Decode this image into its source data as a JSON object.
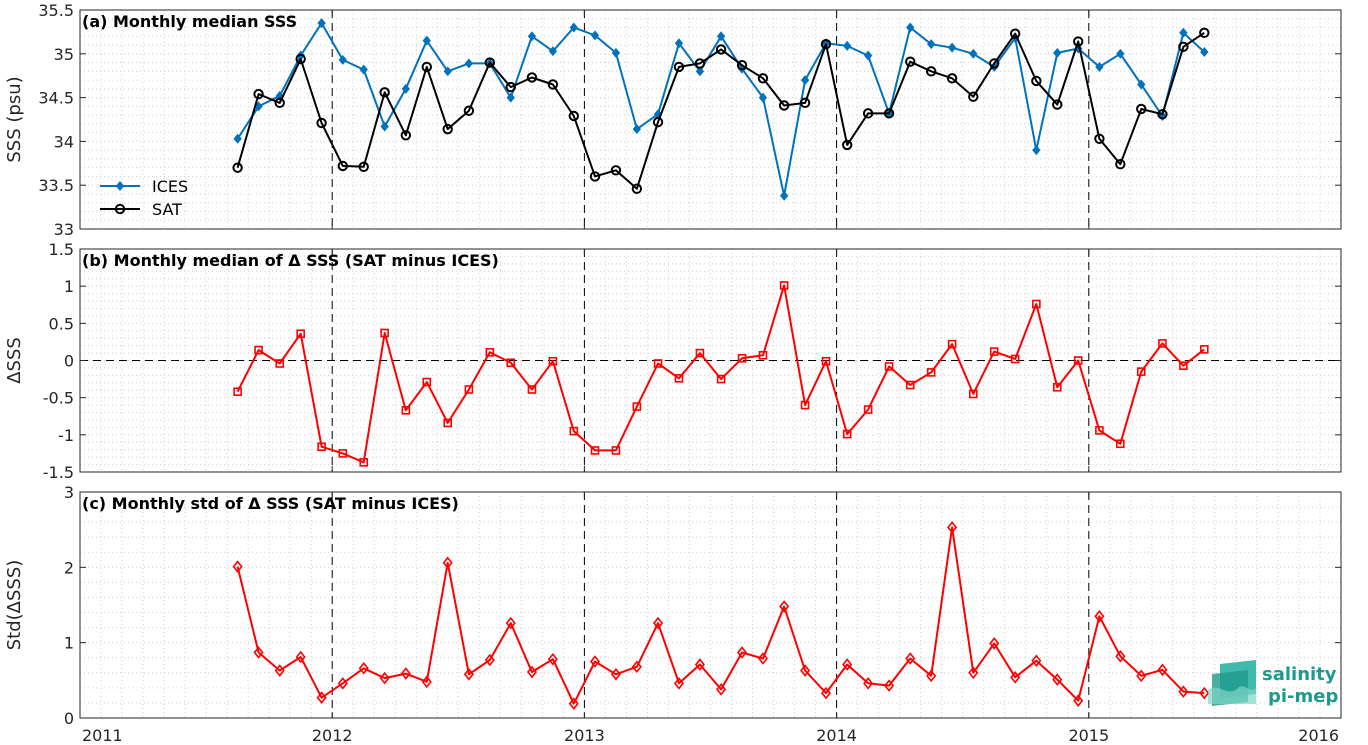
{
  "chart_data": [
    {
      "type": "line",
      "title": "(a) Monthly median SSS",
      "xlabel": "",
      "ylabel": "SSS (psu)",
      "xlim": [
        2011,
        2016
      ],
      "ylim": [
        33,
        35.5
      ],
      "yticks": [
        "33",
        "33.5",
        "34",
        "34.5",
        "35",
        "35.5"
      ],
      "xticks": [
        "2011",
        "2012",
        "2013",
        "2014",
        "2015",
        "2016"
      ],
      "grid": "minor dotted",
      "legend": "bottom-left",
      "series": [
        {
          "name": "ICES",
          "color": "#0072BD",
          "marker": "diamond",
          "x": [
            2011.625,
            2011.708,
            2011.792,
            2011.875,
            2011.958,
            2012.042,
            2012.125,
            2012.208,
            2012.292,
            2012.375,
            2012.458,
            2012.542,
            2012.625,
            2012.708,
            2012.792,
            2012.875,
            2012.958,
            2013.042,
            2013.125,
            2013.208,
            2013.292,
            2013.375,
            2013.458,
            2013.542,
            2013.625,
            2013.708,
            2013.792,
            2013.875,
            2013.958,
            2014.042,
            2014.125,
            2014.208,
            2014.292,
            2014.375,
            2014.458,
            2014.542,
            2014.625,
            2014.708,
            2014.792,
            2014.875,
            2014.958,
            2015.042,
            2015.125,
            2015.208,
            2015.292,
            2015.375,
            2015.458
          ],
          "values": [
            34.03,
            34.4,
            34.52,
            34.98,
            35.35,
            34.93,
            34.82,
            34.17,
            34.6,
            35.15,
            34.8,
            34.89,
            34.89,
            34.5,
            35.2,
            35.03,
            35.3,
            35.21,
            35.01,
            34.14,
            34.31,
            35.12,
            34.8,
            35.2,
            34.83,
            34.5,
            33.38,
            34.7,
            35.12,
            35.09,
            34.98,
            34.32,
            35.3,
            35.11,
            35.07,
            35.0,
            34.85,
            35.18,
            33.9,
            35.01,
            35.06,
            34.85,
            35.0,
            34.65,
            34.29,
            35.24,
            35.02
          ]
        },
        {
          "name": "SAT",
          "color": "#000000",
          "marker": "circle",
          "x": [
            2011.625,
            2011.708,
            2011.792,
            2011.875,
            2011.958,
            2012.042,
            2012.125,
            2012.208,
            2012.292,
            2012.375,
            2012.458,
            2012.542,
            2012.625,
            2012.708,
            2012.792,
            2012.875,
            2012.958,
            2013.042,
            2013.125,
            2013.208,
            2013.292,
            2013.375,
            2013.458,
            2013.542,
            2013.625,
            2013.708,
            2013.792,
            2013.875,
            2013.958,
            2014.042,
            2014.125,
            2014.208,
            2014.292,
            2014.375,
            2014.458,
            2014.542,
            2014.625,
            2014.708,
            2014.792,
            2014.875,
            2014.958,
            2015.042,
            2015.125,
            2015.208,
            2015.292,
            2015.375,
            2015.458
          ],
          "values": [
            33.7,
            34.54,
            34.44,
            34.94,
            34.21,
            33.72,
            33.71,
            34.56,
            34.07,
            34.85,
            34.14,
            34.35,
            34.9,
            34.62,
            34.73,
            34.65,
            34.29,
            33.6,
            33.67,
            33.46,
            34.22,
            34.85,
            34.89,
            35.05,
            34.87,
            34.72,
            34.41,
            34.44,
            35.11,
            33.96,
            34.32,
            34.32,
            34.91,
            34.8,
            34.72,
            34.51,
            34.89,
            35.23,
            34.69,
            34.42,
            35.14,
            34.03,
            33.74,
            34.37,
            34.31,
            35.08,
            35.24
          ]
        }
      ]
    },
    {
      "type": "line",
      "title": "(b) Monthly median of Δ SSS (SAT minus ICES)",
      "xlabel": "",
      "ylabel": "ΔSSS",
      "xlim": [
        2011,
        2016
      ],
      "ylim": [
        -1.5,
        1.5
      ],
      "yticks": [
        "-1.5",
        "-1",
        "-0.5",
        "0",
        "0.5",
        "1",
        "1.5"
      ],
      "grid": "minor dotted",
      "zero_line": true,
      "series": [
        {
          "color": "#FF0000",
          "marker": "square",
          "x": [
            2011.625,
            2011.708,
            2011.792,
            2011.875,
            2011.958,
            2012.042,
            2012.125,
            2012.208,
            2012.292,
            2012.375,
            2012.458,
            2012.542,
            2012.625,
            2012.708,
            2012.792,
            2012.875,
            2012.958,
            2013.042,
            2013.125,
            2013.208,
            2013.292,
            2013.375,
            2013.458,
            2013.542,
            2013.625,
            2013.708,
            2013.792,
            2013.875,
            2013.958,
            2014.042,
            2014.125,
            2014.208,
            2014.292,
            2014.375,
            2014.458,
            2014.542,
            2014.625,
            2014.708,
            2014.792,
            2014.875,
            2014.958,
            2015.042,
            2015.125,
            2015.208,
            2015.292,
            2015.375,
            2015.458
          ],
          "values": [
            -0.42,
            0.14,
            -0.04,
            0.36,
            -1.16,
            -1.25,
            -1.37,
            0.37,
            -0.67,
            -0.29,
            -0.84,
            -0.39,
            0.11,
            -0.03,
            -0.39,
            -0.01,
            -0.95,
            -1.21,
            -1.21,
            -0.62,
            -0.04,
            -0.24,
            0.1,
            -0.25,
            0.03,
            0.07,
            1.01,
            -0.6,
            -0.01,
            -0.99,
            -0.66,
            -0.08,
            -0.33,
            -0.16,
            0.22,
            -0.45,
            0.12,
            0.02,
            0.76,
            -0.36,
            0.0,
            -0.94,
            -1.12,
            -0.15,
            0.23,
            -0.07,
            0.15
          ]
        }
      ]
    },
    {
      "type": "line",
      "title": "(c) Monthly std of Δ SSS (SAT minus ICES)",
      "xlabel": "",
      "ylabel": "Std(ΔSSS)",
      "xlim": [
        2011,
        2016
      ],
      "ylim": [
        0,
        3
      ],
      "yticks": [
        "0",
        "1",
        "2",
        "3"
      ],
      "grid": "minor dotted",
      "series": [
        {
          "color": "#FF0000",
          "marker": "diamond",
          "x": [
            2011.625,
            2011.708,
            2011.792,
            2011.875,
            2011.958,
            2012.042,
            2012.125,
            2012.208,
            2012.292,
            2012.375,
            2012.458,
            2012.542,
            2012.625,
            2012.708,
            2012.792,
            2012.875,
            2012.958,
            2013.042,
            2013.125,
            2013.208,
            2013.292,
            2013.375,
            2013.458,
            2013.542,
            2013.625,
            2013.708,
            2013.792,
            2013.875,
            2013.958,
            2014.042,
            2014.125,
            2014.208,
            2014.292,
            2014.375,
            2014.458,
            2014.542,
            2014.625,
            2014.708,
            2014.792,
            2014.875,
            2014.958,
            2015.042,
            2015.125,
            2015.208,
            2015.292,
            2015.375,
            2015.458
          ],
          "values": [
            2.01,
            0.87,
            0.63,
            0.81,
            0.27,
            0.46,
            0.66,
            0.53,
            0.59,
            0.48,
            2.06,
            0.58,
            0.77,
            1.26,
            0.61,
            0.78,
            0.19,
            0.75,
            0.58,
            0.68,
            1.26,
            0.46,
            0.71,
            0.38,
            0.87,
            0.79,
            1.48,
            0.63,
            0.33,
            0.71,
            0.46,
            0.43,
            0.79,
            0.56,
            2.53,
            0.6,
            0.99,
            0.54,
            0.76,
            0.51,
            0.23,
            1.35,
            0.82,
            0.56,
            0.64,
            0.35,
            0.33
          ]
        }
      ]
    }
  ],
  "logo": {
    "line1": "salinity",
    "line2": "pi-mep",
    "color": "#1e9a8c"
  }
}
